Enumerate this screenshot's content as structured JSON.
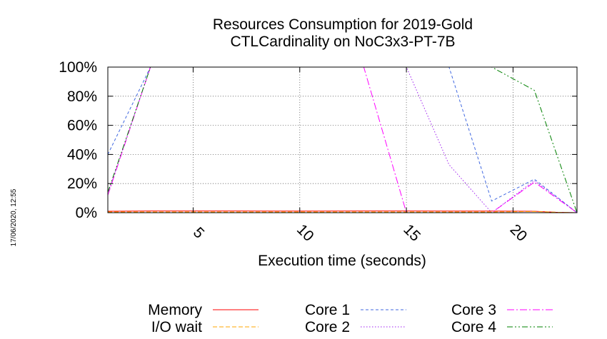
{
  "chart_data": {
    "type": "line",
    "title_lines": [
      "Resources Consumption for 2019-Gold",
      "CTLCardinality on NoC3x3-PT-7B"
    ],
    "xlabel": "Execution time (seconds)",
    "ylabel": "",
    "xlim": [
      1,
      23
    ],
    "ylim": [
      0,
      100
    ],
    "x_ticks": [
      5,
      10,
      15,
      20
    ],
    "x_tick_labels": [
      "5",
      "10",
      "15",
      "20"
    ],
    "y_ticks": [
      0,
      20,
      40,
      60,
      80,
      100
    ],
    "y_tick_labels": [
      "0%",
      "20%",
      "40%",
      "60%",
      "80%",
      "100%"
    ],
    "grid": true,
    "legend_position": "bottom",
    "timestamp": "17/06/2020, 12:55",
    "series": [
      {
        "name": "Memory",
        "color": "#ff0000",
        "dash": "solid",
        "x": [
          1,
          3,
          5,
          7,
          9,
          11,
          13,
          15,
          17,
          19,
          21,
          22,
          23
        ],
        "y": [
          1,
          1.2,
          1.2,
          1.2,
          1.1,
          1.1,
          1.2,
          1.2,
          1.1,
          1.1,
          1,
          0.3,
          0
        ]
      },
      {
        "name": "I/O wait",
        "color": "#ffa500",
        "dash": "long",
        "x": [
          1,
          3,
          9,
          15,
          19,
          21,
          22,
          23
        ],
        "y": [
          0.5,
          0.5,
          0.5,
          0.5,
          0.5,
          0.8,
          0.3,
          0
        ]
      },
      {
        "name": "Core 1",
        "color": "#4169e1",
        "dash": "short",
        "x": [
          1,
          3,
          15,
          17,
          19,
          21,
          23
        ],
        "y": [
          40,
          100,
          100,
          100,
          8,
          23,
          0
        ]
      },
      {
        "name": "Core 2",
        "color": "#a020f0",
        "dash": "dot",
        "x": [
          1,
          3,
          15,
          17,
          19,
          21,
          23
        ],
        "y": [
          13,
          100,
          100,
          33,
          0,
          22,
          0
        ]
      },
      {
        "name": "Core 3",
        "color": "#ff00ff",
        "dash": "dashdot",
        "x": [
          1,
          3,
          13,
          15,
          19,
          21,
          23
        ],
        "y": [
          12,
          100,
          100,
          0,
          0,
          21,
          0
        ]
      },
      {
        "name": "Core 4",
        "color": "#008000",
        "dash": "dashdotdot",
        "x": [
          1,
          3,
          19,
          21,
          23
        ],
        "y": [
          14,
          100,
          100,
          84,
          0
        ]
      }
    ]
  }
}
